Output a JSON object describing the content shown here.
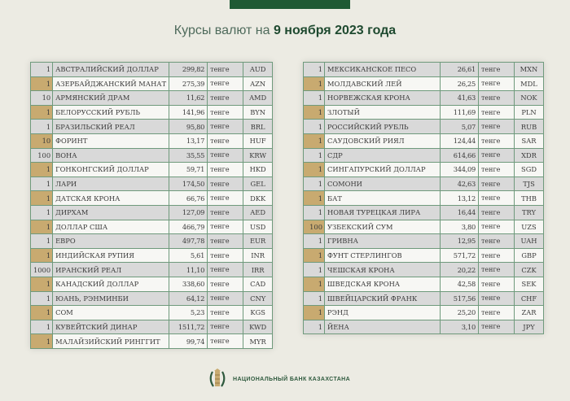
{
  "header": {
    "title_prefix": "Курсы валют на ",
    "title_date": "9 ноября 2023 года"
  },
  "colors": {
    "accent_green": "#1f5a34",
    "gold": "#c8aa70",
    "row_gray": "#d9d9d9"
  },
  "left_table": [
    {
      "qty": "1",
      "name": "АВСТРАЛИЙСКИЙ ДОЛЛАР",
      "rate": "299,82",
      "unit": "тенге",
      "code": "AUD"
    },
    {
      "qty": "1",
      "name": "АЗЕРБАЙДЖАНСКИЙ МАНАТ",
      "rate": "275,39",
      "unit": "тенге",
      "code": "AZN"
    },
    {
      "qty": "10",
      "name": "АРМЯНСКИЙ  ДРАМ",
      "rate": "11,62",
      "unit": "тенге",
      "code": "AMD"
    },
    {
      "qty": "1",
      "name": "БЕЛОРУССКИЙ РУБЛЬ",
      "rate": "141,96",
      "unit": "тенге",
      "code": "BYN"
    },
    {
      "qty": "1",
      "name": "БРАЗИЛЬСКИЙ РЕАЛ",
      "rate": "95,80",
      "unit": "тенге",
      "code": "BRL"
    },
    {
      "qty": "10",
      "name": "ФОРИНТ",
      "rate": "13,17",
      "unit": "тенге",
      "code": "HUF"
    },
    {
      "qty": "100",
      "name": "ВОНА",
      "rate": "35,55",
      "unit": "тенге",
      "code": "KRW"
    },
    {
      "qty": "1",
      "name": "ГОНКОНГСКИЙ ДОЛЛАР",
      "rate": "59,71",
      "unit": "тенге",
      "code": "HKD"
    },
    {
      "qty": "1",
      "name": "ЛАРИ",
      "rate": "174,50",
      "unit": "тенге",
      "code": "GEL"
    },
    {
      "qty": "1",
      "name": "ДАТСКАЯ КРОНА",
      "rate": "66,76",
      "unit": "тенге",
      "code": "DKK"
    },
    {
      "qty": "1",
      "name": "ДИРХАМ",
      "rate": "127,09",
      "unit": "тенге",
      "code": "AED"
    },
    {
      "qty": "1",
      "name": "ДОЛЛАР США",
      "rate": "466,79",
      "unit": "тенге",
      "code": "USD"
    },
    {
      "qty": "1",
      "name": "ЕВРО",
      "rate": "497,78",
      "unit": "тенге",
      "code": "EUR"
    },
    {
      "qty": "1",
      "name": "ИНДИЙСКАЯ РУПИЯ",
      "rate": "5,61",
      "unit": "тенге",
      "code": "INR"
    },
    {
      "qty": "1000",
      "name": "ИРАНСКИЙ РЕАЛ",
      "rate": "11,10",
      "unit": "тенге",
      "code": "IRR"
    },
    {
      "qty": "1",
      "name": "КАНАДСКИЙ ДОЛЛАР",
      "rate": "338,60",
      "unit": "тенге",
      "code": "CAD"
    },
    {
      "qty": "1",
      "name": "ЮАНЬ, РЭНМИНБИ",
      "rate": "64,12",
      "unit": "тенге",
      "code": "CNY"
    },
    {
      "qty": "1",
      "name": "СОМ",
      "rate": "5,23",
      "unit": "тенге",
      "code": "KGS"
    },
    {
      "qty": "1",
      "name": "КУВЕЙТСКИЙ ДИНАР",
      "rate": "1511,72",
      "unit": "тенге",
      "code": "KWD"
    },
    {
      "qty": "1",
      "name": "МАЛАЙЗИЙСКИЙ РИНГГИТ",
      "rate": "99,74",
      "unit": "тенге",
      "code": "MYR"
    }
  ],
  "right_table": [
    {
      "qty": "1",
      "name": "МЕКСИКАНСКОЕ ПЕСО",
      "rate": "26,61",
      "unit": "тенге",
      "code": "MXN"
    },
    {
      "qty": "1",
      "name": "МОЛДАВСКИЙ ЛЕЙ",
      "rate": "26,25",
      "unit": "тенге",
      "code": "MDL"
    },
    {
      "qty": "1",
      "name": "НОРВЕЖСКАЯ КРОНА",
      "rate": "41,63",
      "unit": "тенге",
      "code": "NOK"
    },
    {
      "qty": "1",
      "name": "ЗЛОТЫЙ",
      "rate": "111,69",
      "unit": "тенге",
      "code": "PLN"
    },
    {
      "qty": "1",
      "name": "РОССИЙСКИЙ РУБЛЬ",
      "rate": "5,07",
      "unit": "тенге",
      "code": "RUB"
    },
    {
      "qty": "1",
      "name": "САУДОВСКИЙ РИЯЛ",
      "rate": "124,44",
      "unit": "тенге",
      "code": "SAR"
    },
    {
      "qty": "1",
      "name": "СДР",
      "rate": "614,66",
      "unit": "тенге",
      "code": "XDR"
    },
    {
      "qty": "1",
      "name": "СИНГАПУРСКИЙ ДОЛЛАР",
      "rate": "344,09",
      "unit": "тенге",
      "code": "SGD"
    },
    {
      "qty": "1",
      "name": "СОМОНИ",
      "rate": "42,63",
      "unit": "тенге",
      "code": "TJS"
    },
    {
      "qty": "1",
      "name": "БАТ",
      "rate": "13,12",
      "unit": "тенге",
      "code": "THB"
    },
    {
      "qty": "1",
      "name": "НОВАЯ ТУРЕЦКАЯ ЛИРА",
      "rate": "16,44",
      "unit": "тенге",
      "code": "TRY"
    },
    {
      "qty": "100",
      "name": "УЗБЕКСКИЙ СУМ",
      "rate": "3,80",
      "unit": "тенге",
      "code": "UZS"
    },
    {
      "qty": "1",
      "name": "ГРИВНА",
      "rate": "12,95",
      "unit": "тенге",
      "code": "UAH"
    },
    {
      "qty": "1",
      "name": "ФУНТ СТЕРЛИНГОВ",
      "rate": "571,72",
      "unit": "тенге",
      "code": "GBP"
    },
    {
      "qty": "1",
      "name": "ЧЕШСКАЯ КРОНА",
      "rate": "20,22",
      "unit": "тенге",
      "code": "CZK"
    },
    {
      "qty": "1",
      "name": "ШВЕДСКАЯ КРОНА",
      "rate": "42,58",
      "unit": "тенге",
      "code": "SEK"
    },
    {
      "qty": "1",
      "name": "ШВЕЙЦАРСКИЙ ФРАНК",
      "rate": "517,56",
      "unit": "тенге",
      "code": "CHF"
    },
    {
      "qty": "1",
      "name": "РЭНД",
      "rate": "25,20",
      "unit": "тенге",
      "code": "ZAR"
    },
    {
      "qty": "1",
      "name": "ЙЕНА",
      "rate": "3,10",
      "unit": "тенге",
      "code": "JPY"
    }
  ],
  "footer": {
    "bank_name": "НАЦИОНАЛЬНЫЙ БАНК КАЗАХСТАНА",
    "logo_icon": "national-bank-emblem-icon"
  }
}
